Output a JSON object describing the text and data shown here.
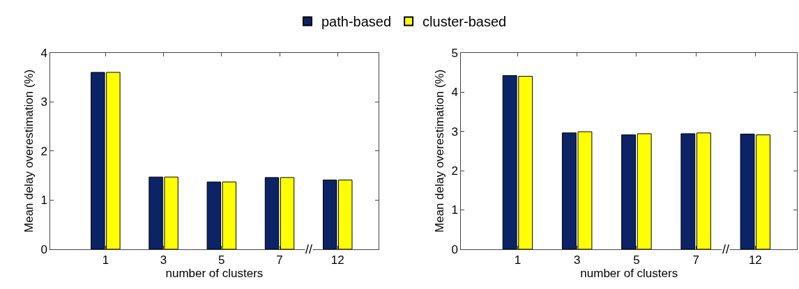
{
  "chart_data": [
    {
      "type": "bar",
      "xlabel": "number of clusters",
      "ylabel": "Mean delay overestimation (%)",
      "categories": [
        "1",
        "3",
        "5",
        "7",
        "12"
      ],
      "series": [
        {
          "name": "path-based",
          "color": "#0c2366",
          "values": [
            3.6,
            1.47,
            1.37,
            1.46,
            1.41
          ]
        },
        {
          "name": "cluster-based",
          "color": "#ffff00",
          "values": [
            3.6,
            1.47,
            1.37,
            1.46,
            1.41
          ]
        }
      ],
      "ylim": [
        0,
        4
      ],
      "yticks": [
        0,
        1,
        2,
        3,
        4
      ],
      "legend": "top",
      "annotations": [
        "//"
      ]
    },
    {
      "type": "bar",
      "xlabel": "number of clusters",
      "ylabel": "Mean delay overestimation (%)",
      "categories": [
        "1",
        "3",
        "5",
        "7",
        "12"
      ],
      "series": [
        {
          "color": "#0c2366",
          "values": [
            4.42,
            2.96,
            2.91,
            2.94,
            2.93
          ]
        },
        {
          "color": "#ffff00",
          "values": [
            4.4,
            2.99,
            2.94,
            2.96,
            2.91
          ]
        }
      ],
      "ylim": [
        0,
        5
      ],
      "yticks": [
        0,
        1,
        2,
        3,
        4,
        5
      ],
      "annotations": [
        "//"
      ]
    }
  ]
}
